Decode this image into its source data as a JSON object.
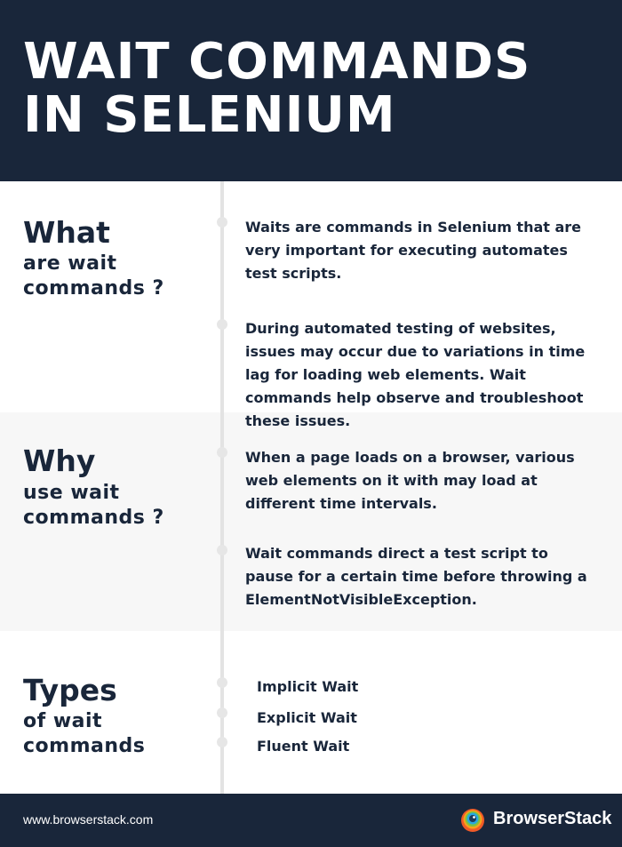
{
  "header": {
    "title": "WAIT COMMANDS IN SELENIUM"
  },
  "sections": [
    {
      "heading_big": "What",
      "heading_small_1": "are wait",
      "heading_small_2": "commands ?",
      "points": [
        "Waits are commands in Selenium that are very important for executing automates test scripts.",
        "During automated testing of websites, issues may occur due to variations in time lag for loading web elements. Wait commands help observe and troubleshoot these issues."
      ]
    },
    {
      "heading_big": "Why",
      "heading_small_1": "use wait",
      "heading_small_2": "commands ?",
      "points": [
        "When a page loads on a browser, various web elements on it with may load at different time intervals.",
        "Wait commands direct a test script to pause for a certain time before throwing a ElementNotVisibleException."
      ]
    },
    {
      "heading_big": "Types",
      "heading_small_1": "of wait",
      "heading_small_2": "commands",
      "items": [
        "Implicit Wait",
        "Explicit Wait",
        "Fluent Wait"
      ]
    }
  ],
  "footer": {
    "url": "www.browserstack.com",
    "brand": "BrowserStack",
    "logo_icon": "browserstack-logo-icon"
  },
  "colors": {
    "navy": "#19263a",
    "panel_gray": "#f7f7f7",
    "line_gray": "#e3e3e3"
  }
}
